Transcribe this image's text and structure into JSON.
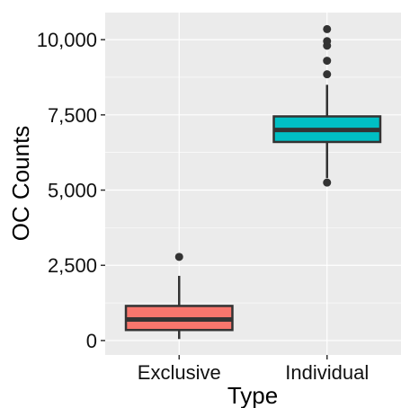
{
  "chart_data": {
    "type": "box",
    "xlabel": "Type",
    "ylabel": "OC Counts",
    "ylim": [
      -480,
      10900
    ],
    "yticks": [
      0,
      2500,
      5000,
      7500,
      10000
    ],
    "ytick_labels": [
      "0",
      "2,500",
      "5,000",
      "7,500",
      "10,000"
    ],
    "categories": [
      "Exclusive",
      "Individual"
    ],
    "boxes": [
      {
        "category": "Exclusive",
        "color": "#F8766D",
        "lower_whisker": 50,
        "q1": 350,
        "median": 700,
        "q3": 1150,
        "upper_whisker": 2150,
        "outliers": [
          2780
        ]
      },
      {
        "category": "Individual",
        "color": "#00BFC4",
        "lower_whisker": 5400,
        "q1": 6600,
        "median": 7000,
        "q3": 7450,
        "upper_whisker": 8500,
        "outliers": [
          5250,
          8850,
          9300,
          9800,
          9950,
          10350
        ]
      }
    ],
    "panel_background": "#EBEBEB",
    "gridline_color": "#FFFFFF",
    "grid": true
  }
}
